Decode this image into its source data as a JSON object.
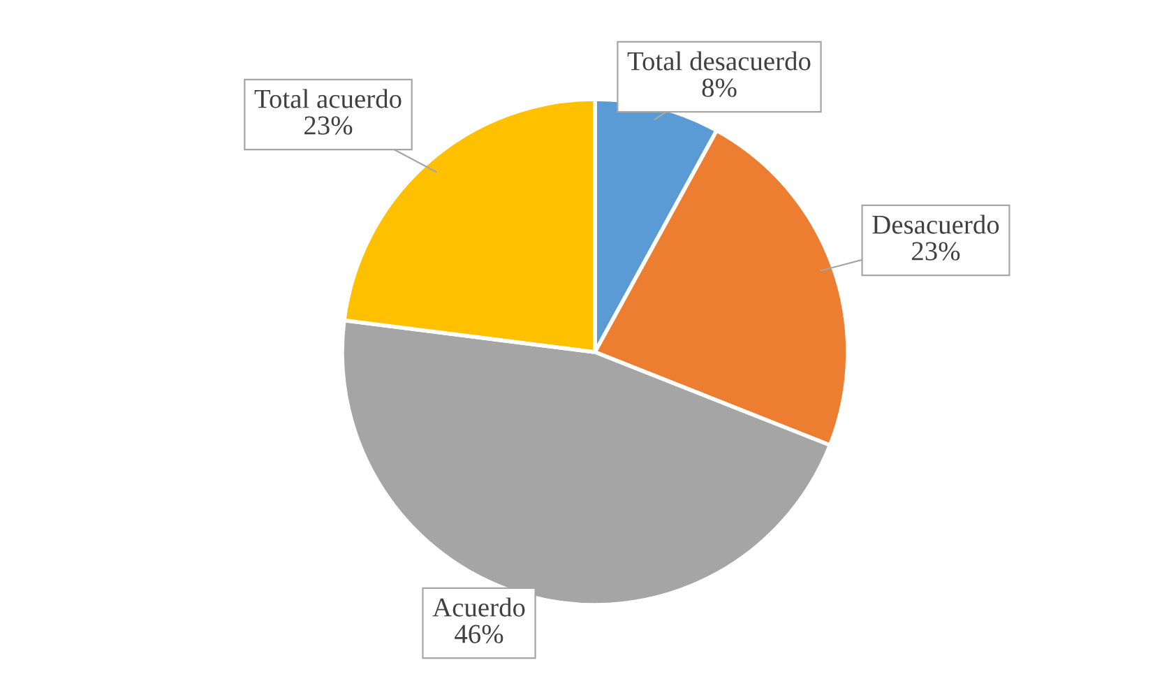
{
  "chart_data": {
    "type": "pie",
    "categories": [
      "Total desacuerdo\n8%",
      "Desacuerdo\n23%",
      "Acuerdo\n46%",
      "Total acuerdo\n23%"
    ],
    "values": [
      8,
      23,
      46,
      23
    ],
    "colors": [
      "#5b9bd5",
      "#ed7d31",
      "#a5a5a5",
      "#ffc000"
    ],
    "legend": false
  }
}
